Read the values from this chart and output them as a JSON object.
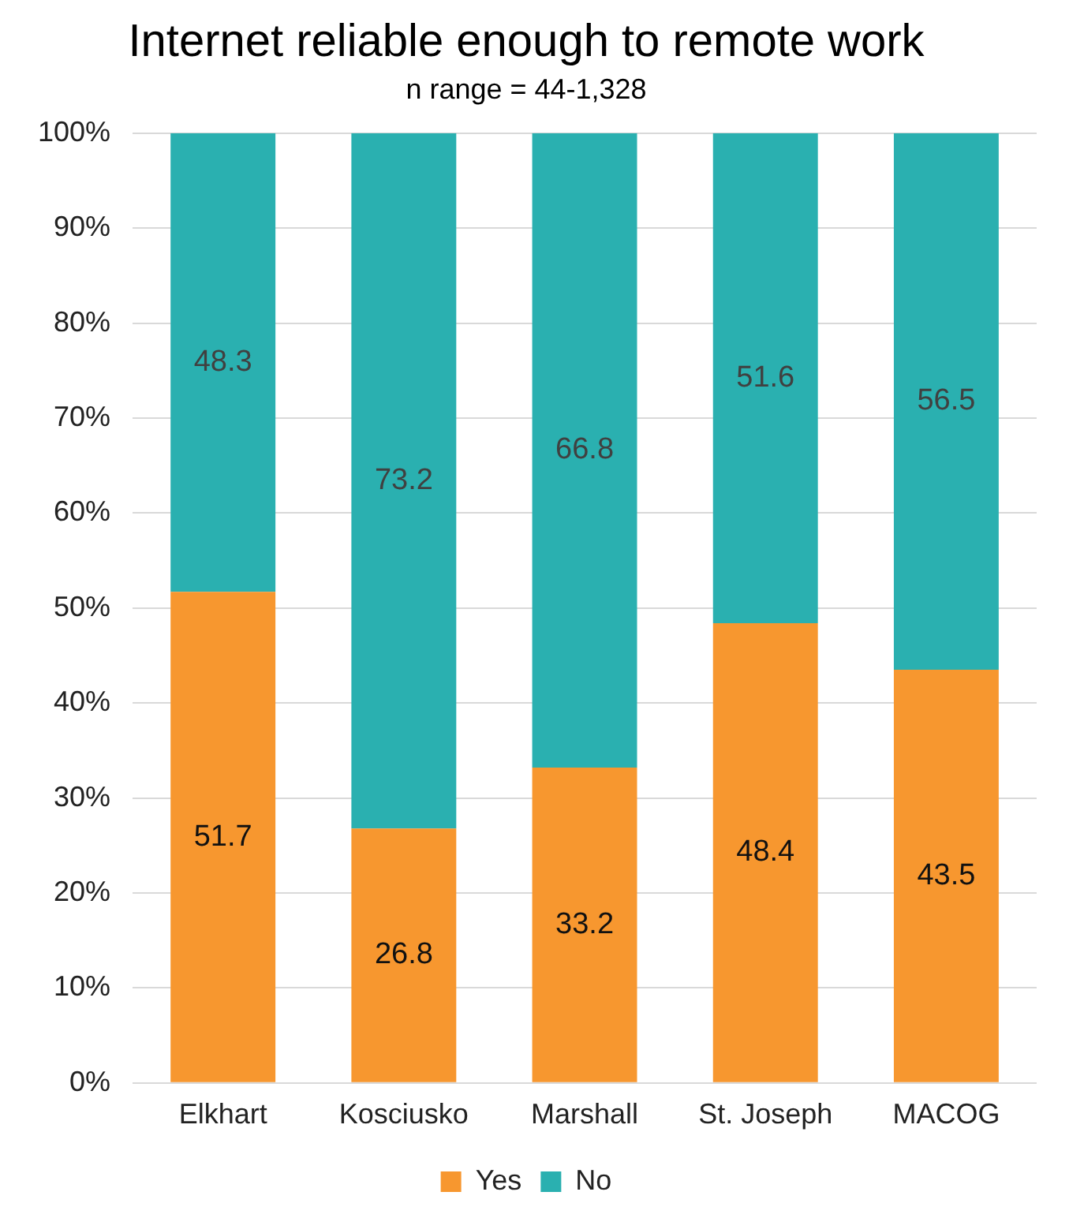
{
  "chart_data": {
    "type": "bar",
    "title": "Internet reliable enough to remote work",
    "subtitle": "n range = 44-1,328",
    "categories": [
      "Elkhart",
      "Kosciusko",
      "Marshall",
      "St. Joseph",
      "MACOG"
    ],
    "series": [
      {
        "name": "Yes",
        "color": "#f7972f",
        "values": [
          51.7,
          26.8,
          33.2,
          48.4,
          43.5
        ]
      },
      {
        "name": "No",
        "color": "#2ab0b0",
        "values": [
          48.3,
          73.2,
          66.8,
          51.6,
          56.5
        ]
      }
    ],
    "stacked": true,
    "data_labels": true,
    "grid": "y",
    "legend": "bottom",
    "ylim": [
      0,
      100
    ],
    "yticks": [
      {
        "value": 0,
        "label": "0%"
      },
      {
        "value": 10,
        "label": "10%"
      },
      {
        "value": 20,
        "label": "20%"
      },
      {
        "value": 30,
        "label": "30%"
      },
      {
        "value": 40,
        "label": "40%"
      },
      {
        "value": 50,
        "label": "50%"
      },
      {
        "value": 60,
        "label": "60%"
      },
      {
        "value": 70,
        "label": "70%"
      },
      {
        "value": 80,
        "label": "80%"
      },
      {
        "value": 90,
        "label": "90%"
      },
      {
        "value": 100,
        "label": "100%"
      }
    ]
  }
}
